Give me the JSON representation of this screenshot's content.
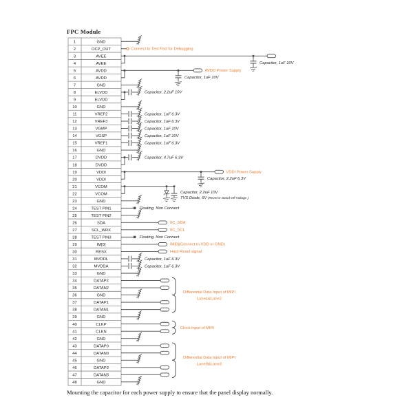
{
  "title": "FPC Module",
  "footer": "Mounting the capacitor for each power supply to ensure that the panel display normally.",
  "colors": {
    "accent": "#ED7D31",
    "line": "#4a4a4a",
    "table_border": "#8a8a8a",
    "text": "#222222"
  },
  "pins": [
    {
      "num": 1,
      "name": "GND",
      "t": "gnd"
    },
    {
      "num": 2,
      "name": "OCP_OUT",
      "t": "pad",
      "label": "Connect to Test Pad for Debugging"
    },
    {
      "num": 3,
      "name": "AVEE",
      "t": "rail",
      "cap": "Capacitor, 1uF 10V"
    },
    {
      "num": 4,
      "name": "AVEE",
      "t": "join"
    },
    {
      "num": 5,
      "name": "AVDD",
      "t": "rail",
      "rail": "AVDD Power Supply",
      "cap": "Capacitor, 1uF 10V"
    },
    {
      "num": 6,
      "name": "AVDD",
      "t": "join"
    },
    {
      "num": 7,
      "name": "GND",
      "t": "gnd"
    },
    {
      "num": 8,
      "name": "ELVDD",
      "t": "scap",
      "cap": "Capacitor, 2.2uF 10V"
    },
    {
      "num": 9,
      "name": "ELVDD",
      "t": "join"
    },
    {
      "num": 10,
      "name": "GND",
      "t": "gnd"
    },
    {
      "num": 11,
      "name": "VREF2",
      "t": "scap",
      "cap": "Capacitor, 1uF 6.3V"
    },
    {
      "num": 12,
      "name": "VREF3",
      "t": "scap",
      "cap": "Capacitor, 1uF 6.3V"
    },
    {
      "num": 13,
      "name": "VGMP",
      "t": "scap",
      "cap": "Capacitor, 1uF 10V"
    },
    {
      "num": 14,
      "name": "VGSP",
      "t": "scap",
      "cap": "Capacitor, 1uF 10V"
    },
    {
      "num": 15,
      "name": "VREF1",
      "t": "scap",
      "cap": "Capacitor, 1uF 6.3V"
    },
    {
      "num": 16,
      "name": "GND",
      "t": "gnd"
    },
    {
      "num": 17,
      "name": "DVDD",
      "t": "scap",
      "cap": "Capacitor, 4.7uF 6.3V"
    },
    {
      "num": 18,
      "name": "DVDD",
      "t": "join"
    },
    {
      "num": 19,
      "name": "VDDI",
      "t": "rail",
      "rail": "VDDI Power Supply",
      "cap": "Capacitor, 2.2uF 6.3V"
    },
    {
      "num": 20,
      "name": "VDDI",
      "t": "join"
    },
    {
      "num": 21,
      "name": "VCOM",
      "t": "vcom",
      "cap": "Capacitor, 2.2uF 10V",
      "tvs": "TVS Diode, 6V",
      "tvs_note": "(Reverse Stand-Off Voltage )"
    },
    {
      "num": 22,
      "name": "VCOM",
      "t": "join"
    },
    {
      "num": 23,
      "name": "GND",
      "t": "gnd"
    },
    {
      "num": 24,
      "name": "TEST PIN1",
      "t": "float",
      "label": "Floating, Non Connect"
    },
    {
      "num": 25,
      "name": "TEST PIN2",
      "t": "gnd"
    },
    {
      "num": 26,
      "name": "SDA",
      "t": "sig",
      "label": "IIC_SDA"
    },
    {
      "num": 27,
      "name": "SCL_WRX",
      "t": "sig",
      "label": "IIC_SCL"
    },
    {
      "num": 28,
      "name": "TEST PIN3",
      "t": "float",
      "label": "Floating, Non Connect"
    },
    {
      "num": 29,
      "name": "IM[0]",
      "t": "sig",
      "label": "IM[0](Connect to VDD or GND)"
    },
    {
      "num": 30,
      "name": "RESX",
      "t": "sig",
      "label": "Hard Reset signal"
    },
    {
      "num": 31,
      "name": "MVDDL",
      "t": "scap",
      "cap": "Capacitor, 1uF 6.3V"
    },
    {
      "num": 32,
      "name": "MVDDA",
      "t": "scap",
      "cap": "Capacitor, 1uF 6.3V"
    },
    {
      "num": 33,
      "name": "GND",
      "t": "gnd"
    },
    {
      "num": 34,
      "name": "DATAP2",
      "t": "conn"
    },
    {
      "num": 35,
      "name": "DATAN2",
      "t": "conn"
    },
    {
      "num": 36,
      "name": "GND",
      "t": "gnd"
    },
    {
      "num": 37,
      "name": "DATAP1",
      "t": "conn"
    },
    {
      "num": 38,
      "name": "DATAN1",
      "t": "conn"
    },
    {
      "num": 39,
      "name": "GND",
      "t": "gnd"
    },
    {
      "num": 40,
      "name": "CLKP",
      "t": "conn"
    },
    {
      "num": 41,
      "name": "CLKN",
      "t": "conn"
    },
    {
      "num": 42,
      "name": "GND",
      "t": "gnd"
    },
    {
      "num": 43,
      "name": "DATAP0",
      "t": "conn"
    },
    {
      "num": 44,
      "name": "DATAN0",
      "t": "conn"
    },
    {
      "num": 45,
      "name": "GND",
      "t": "gnd"
    },
    {
      "num": 46,
      "name": "DATAP3",
      "t": "conn"
    },
    {
      "num": 47,
      "name": "DATAN3",
      "t": "conn"
    },
    {
      "num": 48,
      "name": "GND",
      "t": "gnd"
    }
  ],
  "groups": [
    {
      "from": 34,
      "to": 38,
      "lines": [
        "Differential Data Input of MIPI",
        "Lane1&Lane2"
      ]
    },
    {
      "from": 40,
      "to": 41,
      "lines": [
        "Clock Input of MIPI"
      ]
    },
    {
      "from": 43,
      "to": 47,
      "lines": [
        "Differential Data Input of MIPI",
        "Lane0&Lane3"
      ]
    }
  ]
}
